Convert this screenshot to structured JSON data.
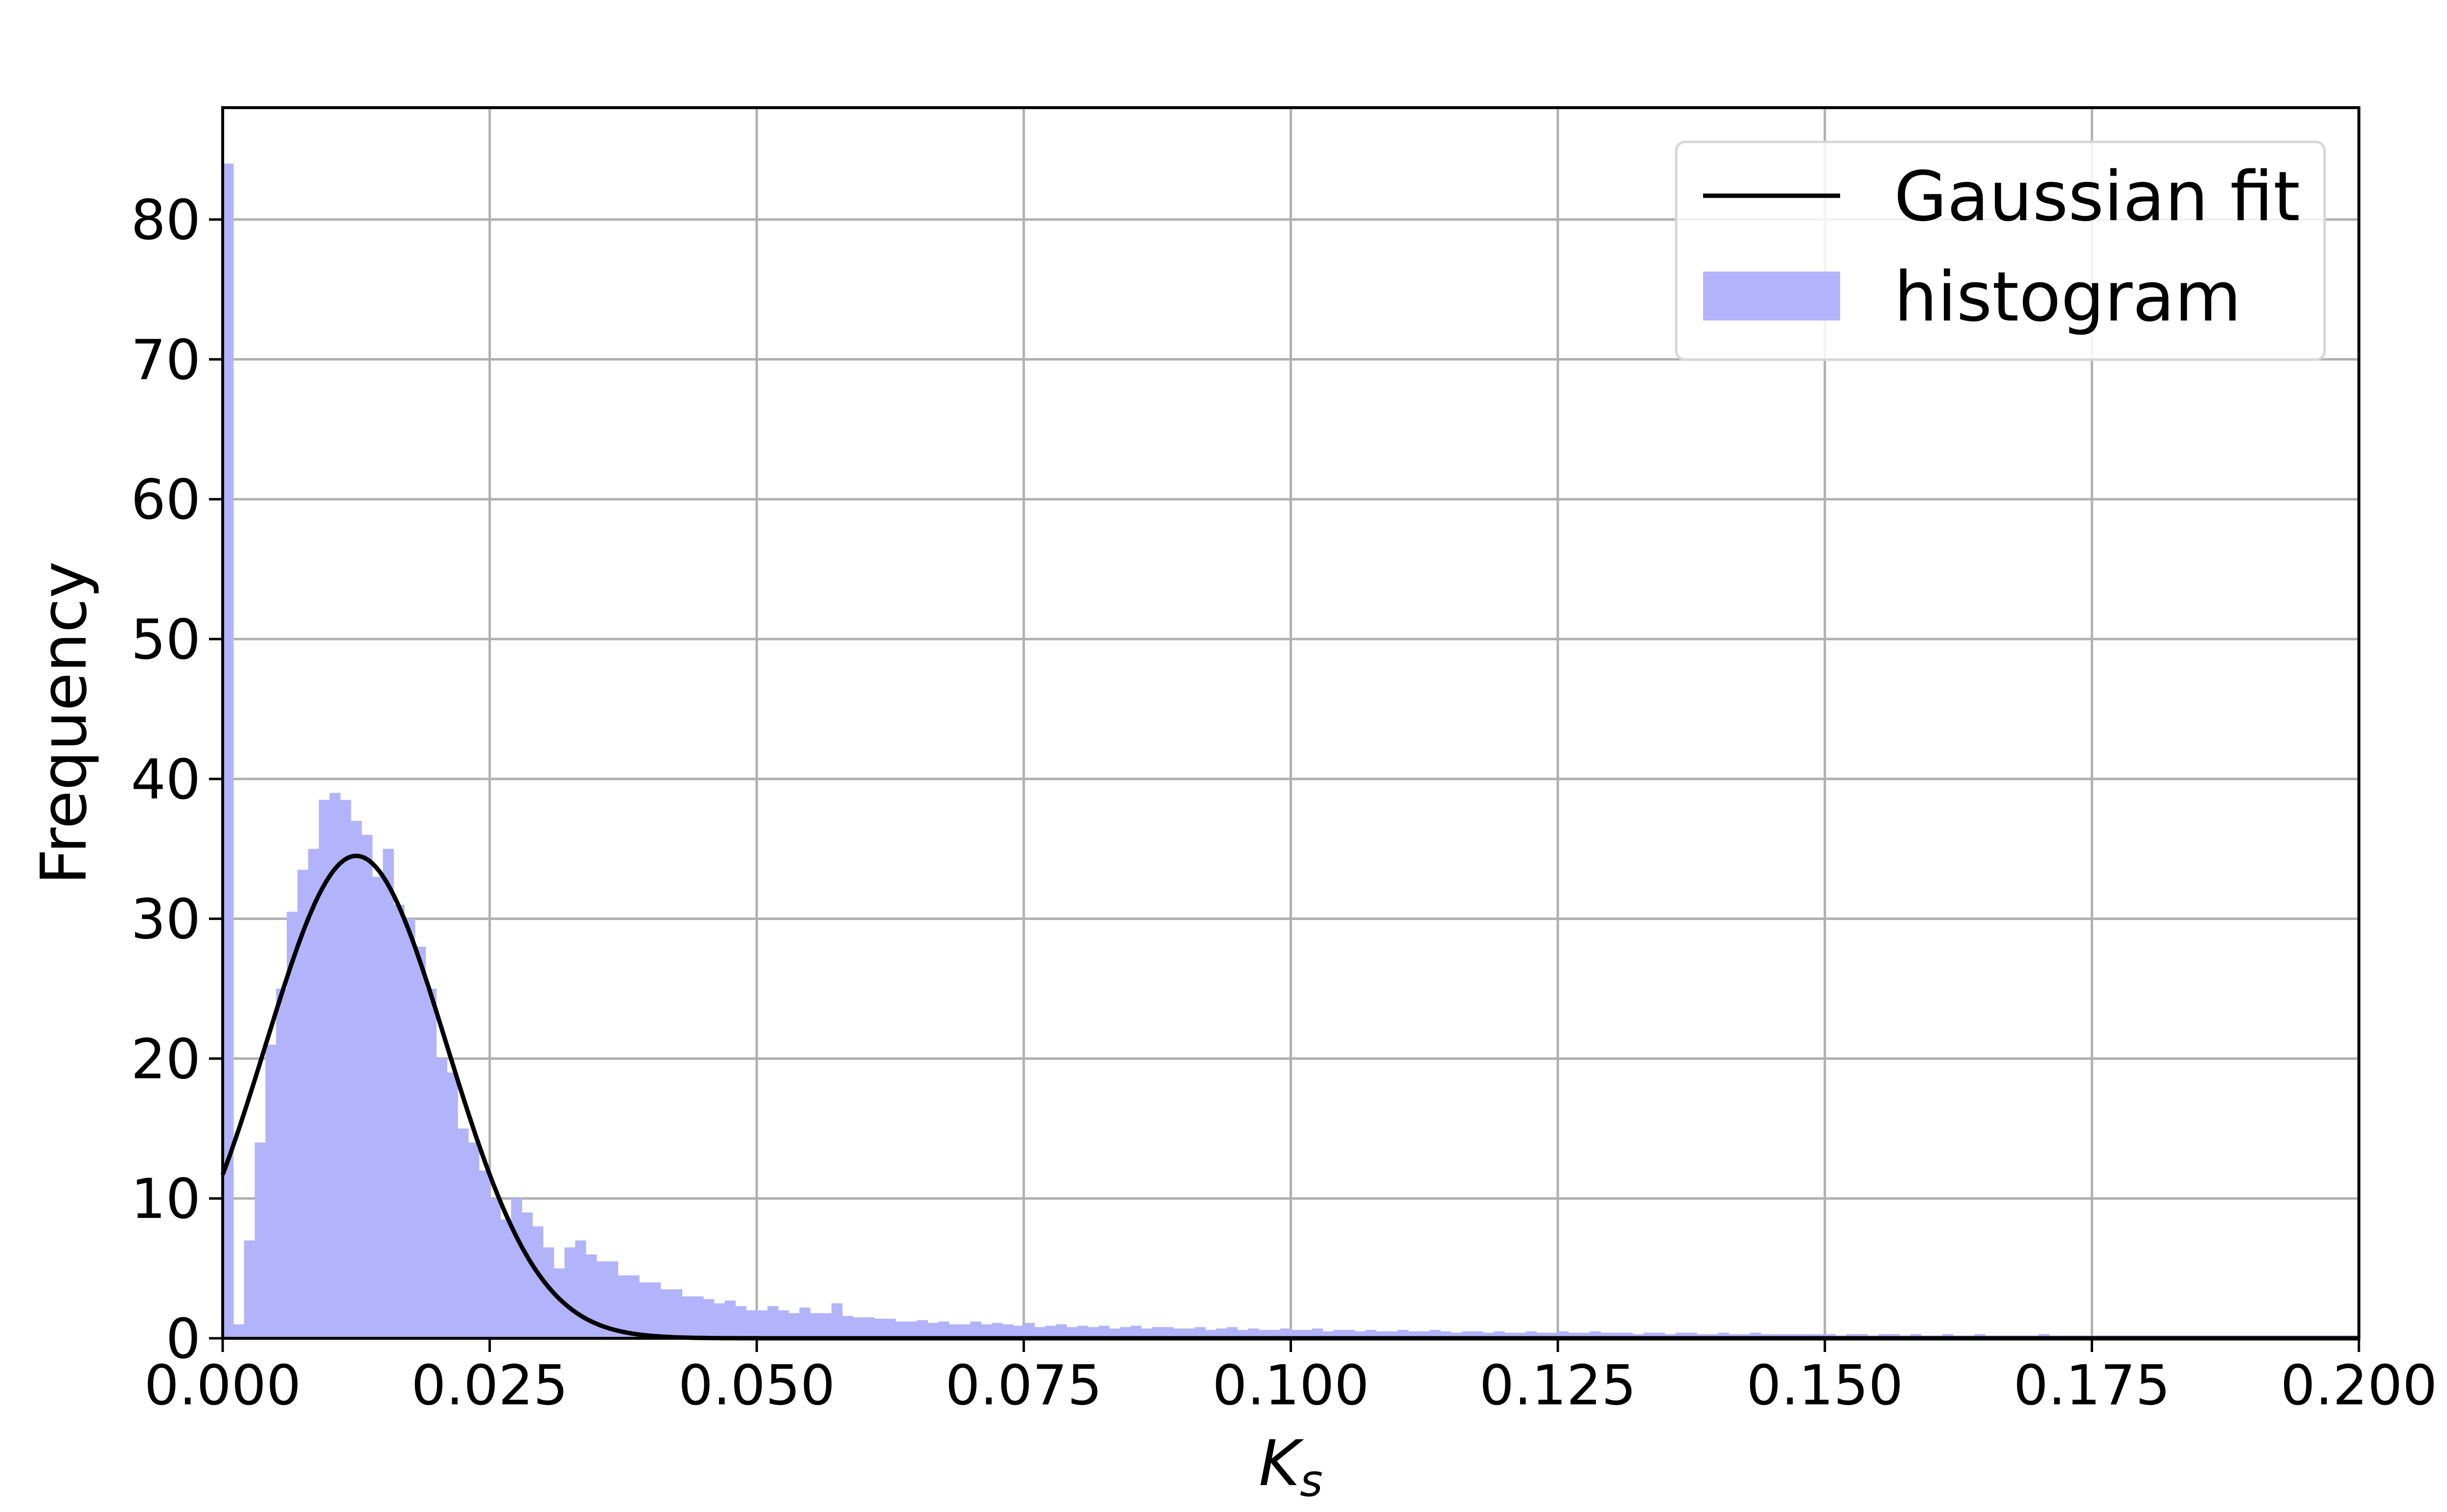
{
  "chart_data": {
    "type": "bar",
    "title": "",
    "xlabel": "K",
    "xlabel_sub": "s",
    "ylabel": "Frequency",
    "xlim": [
      0.0,
      0.2
    ],
    "ylim": [
      0,
      88
    ],
    "xticks": [
      "0.000",
      "0.025",
      "0.050",
      "0.075",
      "0.100",
      "0.125",
      "0.150",
      "0.175",
      "0.200"
    ],
    "yticks": [
      "0",
      "10",
      "20",
      "30",
      "40",
      "50",
      "60",
      "70",
      "80"
    ],
    "grid": true,
    "legend_position": "top-right",
    "colors": {
      "histogram": "#b3b3fb",
      "fit": "#000000",
      "grid": "#b0b0b0"
    },
    "series": [
      {
        "name": "histogram",
        "kind": "histogram",
        "bin_width": 0.001,
        "x_start": 0.0,
        "values": [
          84,
          1,
          7,
          14,
          21,
          25,
          30.5,
          33.5,
          35,
          38.5,
          39,
          38.5,
          37,
          36,
          33,
          35,
          31,
          30,
          28,
          25,
          20,
          19,
          15,
          14,
          12,
          10,
          8.5,
          10,
          9,
          8,
          6.5,
          5,
          6.5,
          7,
          6,
          5.5,
          5.5,
          4.5,
          4.5,
          4,
          4,
          3.5,
          3.5,
          3,
          3,
          2.8,
          2.5,
          2.7,
          2.3,
          2,
          2,
          2.3,
          2,
          1.8,
          2.2,
          1.8,
          1.8,
          2.5,
          1.6,
          1.5,
          1.5,
          1.4,
          1.4,
          1.2,
          1.2,
          1.3,
          1.1,
          1.2,
          1,
          1,
          1.2,
          1,
          1.1,
          1,
          0.9,
          1.1,
          0.8,
          0.9,
          1,
          0.8,
          0.9,
          0.8,
          0.9,
          0.7,
          0.8,
          0.9,
          0.7,
          0.8,
          0.8,
          0.7,
          0.7,
          0.8,
          0.6,
          0.7,
          0.8,
          0.6,
          0.7,
          0.6,
          0.6,
          0.7,
          0.6,
          0.6,
          0.7,
          0.5,
          0.6,
          0.6,
          0.5,
          0.6,
          0.5,
          0.5,
          0.6,
          0.5,
          0.5,
          0.6,
          0.5,
          0.4,
          0.5,
          0.5,
          0.4,
          0.5,
          0.4,
          0.4,
          0.5,
          0.4,
          0.4,
          0.5,
          0.4,
          0.4,
          0.5,
          0.4,
          0.4,
          0.4,
          0.3,
          0.4,
          0.4,
          0.3,
          0.4,
          0.4,
          0.3,
          0.3,
          0.4,
          0.3,
          0.3,
          0.4,
          0.3,
          0.3,
          0.3,
          0.3,
          0.3,
          0.3,
          0.3,
          0.2,
          0.3,
          0.3,
          0.2,
          0.3,
          0.3,
          0.2,
          0.3,
          0.2,
          0.2,
          0.3,
          0.2,
          0.2,
          0.3,
          0.2,
          0.2,
          0.2,
          0.2,
          0.2,
          0.3,
          0.2,
          0.2,
          0.2,
          0.2,
          0.2,
          0.2,
          0.2,
          0.2,
          0.2,
          0.2,
          0.2,
          0.2,
          0.2,
          0.2,
          0.2,
          0.2,
          0.2,
          0.2,
          0.2,
          0.2,
          0.2,
          0.2,
          0.2,
          0.2,
          0.2,
          0.2,
          0.2,
          0.2,
          0.2,
          0.2,
          0.2,
          0.2
        ]
      },
      {
        "name": "Gaussian fit",
        "kind": "gaussian",
        "amplitude": 34.5,
        "mean": 0.0125,
        "sigma": 0.0085
      }
    ],
    "legend": [
      {
        "label": "Gaussian fit",
        "swatch": "line"
      },
      {
        "label": "histogram",
        "swatch": "patch"
      }
    ]
  }
}
